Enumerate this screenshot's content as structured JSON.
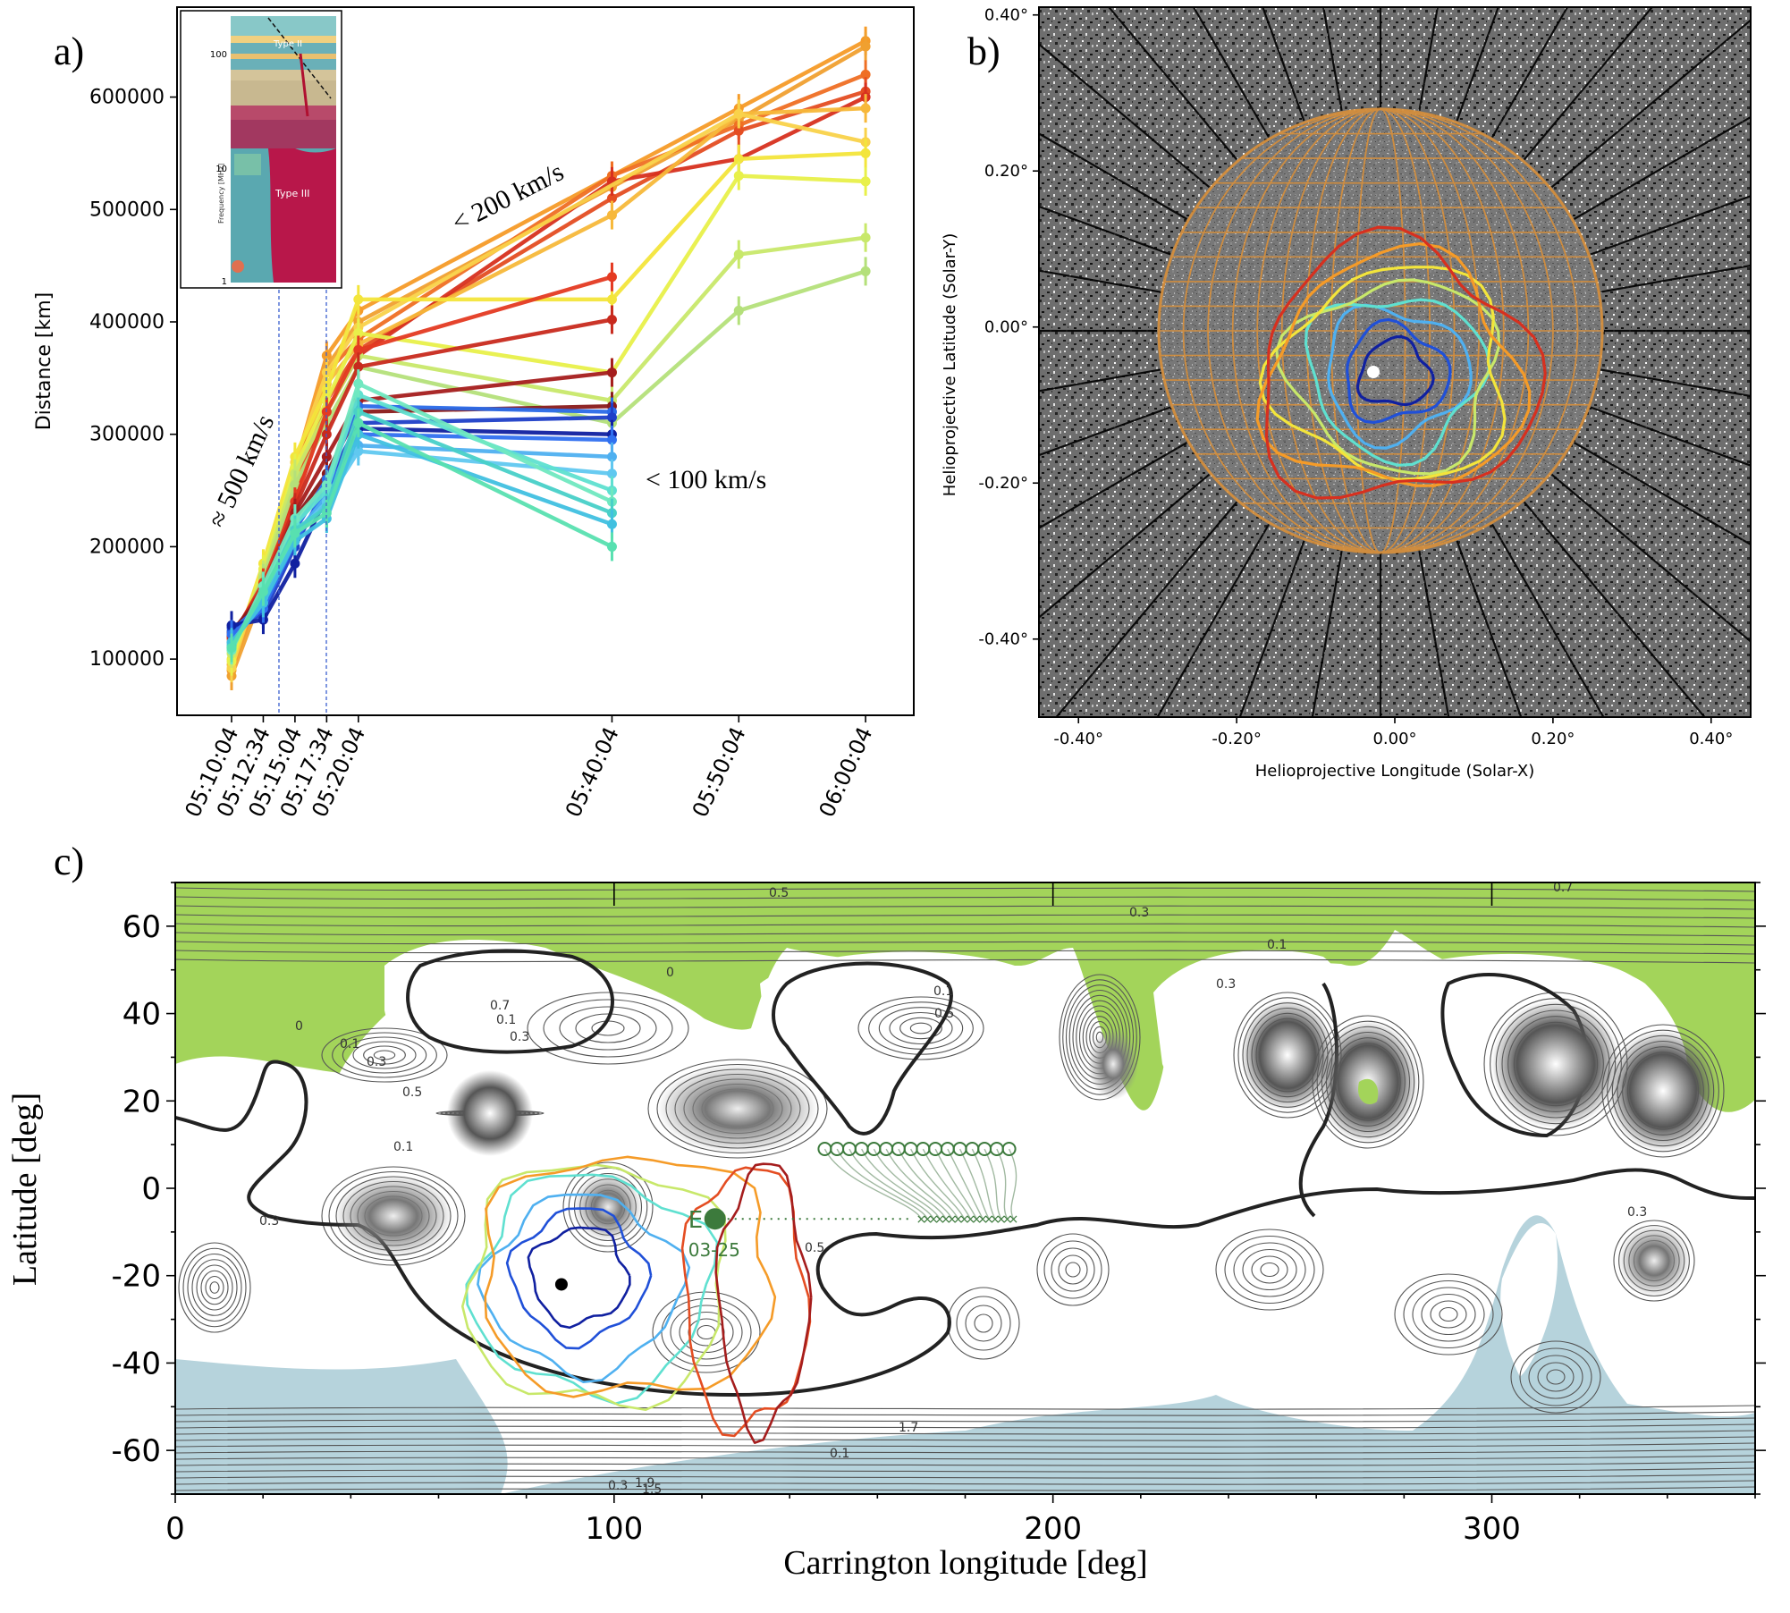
{
  "panel_a": {
    "label": "a)",
    "ylabel": "Distance [km]",
    "yticks": [
      "100000",
      "200000",
      "300000",
      "400000",
      "500000",
      "600000"
    ],
    "xticks": [
      "05:10:04",
      "05:12:34",
      "05:15:04",
      "05:17:34",
      "05:20:04",
      "05:40:04",
      "05:50:04",
      "06:00:04"
    ],
    "annotations": [
      "≈ 500 km/s",
      "< 200 km/s",
      "< 100 km/s"
    ],
    "inset": {
      "labels": [
        "Type II",
        "Type III",
        "Frequency [MHz]"
      ],
      "yticks": [
        "100",
        "10",
        "1"
      ]
    }
  },
  "panel_b": {
    "label": "b)",
    "xlabel": "Helioprojective Longitude (Solar-X)",
    "ylabel": "Helioprojective Latitude (Solar-Y)",
    "xticks": [
      "-0.40°",
      "-0.20°",
      "0.00°",
      "0.20°",
      "0.40°"
    ],
    "yticks": [
      "0.40°",
      "0.20°",
      "0.00°",
      "-0.20°",
      "-0.40°"
    ]
  },
  "panel_c": {
    "label": "c)",
    "xlabel": "Carrington longitude [deg]",
    "ylabel": "Latitude [deg]",
    "xticks": [
      "0",
      "100",
      "200",
      "300"
    ],
    "yticks": [
      "60",
      "40",
      "20",
      "0",
      "-20",
      "-40",
      "-60"
    ],
    "annotations": [
      "E",
      "03-25"
    ],
    "contour_labels": [
      "0.5",
      "0.3",
      "0.1",
      "0.7",
      "0",
      "0.1",
      "0.3",
      "0.5",
      "0.7",
      "0",
      "0.1",
      "0.3",
      "0.5",
      "0.1",
      "0.3",
      "0.1",
      "0.3",
      "0.5",
      "1.7",
      "1.5",
      "1.9",
      "0.3",
      "0.1",
      "0.3"
    ]
  },
  "colors": {
    "fast_orange": "#f59b28",
    "fast_red": "#d7301f",
    "dark_red": "#a51d1d",
    "yellow": "#f3e53b",
    "lime": "#c8e86a",
    "cyan": "#5fe0d0",
    "light_blue": "#4fb0f0",
    "blue": "#2050d8",
    "dark_blue": "#1020a0",
    "open_field_green": "#a3d45a",
    "open_field_blue": "#b6d3dc",
    "marker_green": "#3c7a3c",
    "grid_orange": "#d9903a"
  },
  "chart_data": [
    {
      "type": "line",
      "title": "",
      "xlabel": "",
      "ylabel": "Distance [km]",
      "x": [
        "05:10:04",
        "05:12:34",
        "05:15:04",
        "05:17:34",
        "05:20:04",
        "05:40:04",
        "05:50:04",
        "06:00:04"
      ],
      "x_minutes": [
        0,
        2.5,
        5,
        7.5,
        10,
        30,
        40,
        50
      ],
      "ylim": [
        50000,
        680000
      ],
      "inset": "radio dynamic spectrum with Type II and Type III bursts",
      "series": [
        {
          "color": "#f59b28",
          "values": [
            90000,
            170000,
            270000,
            370000,
            410000,
            530000,
            590000,
            650000
          ]
        },
        {
          "color": "#f0a030",
          "values": [
            85000,
            160000,
            255000,
            360000,
            400000,
            520000,
            580000,
            645000
          ]
        },
        {
          "color": "#ef6f24",
          "values": [
            110000,
            175000,
            265000,
            355000,
            385000,
            530000,
            575000,
            620000
          ]
        },
        {
          "color": "#e44d22",
          "values": [
            115000,
            170000,
            250000,
            330000,
            375000,
            510000,
            570000,
            605000
          ]
        },
        {
          "color": "#d7301f",
          "values": [
            120000,
            165000,
            245000,
            320000,
            370000,
            525000,
            545000,
            600000
          ]
        },
        {
          "color": "#f7b83a",
          "values": [
            95000,
            175000,
            260000,
            345000,
            380000,
            495000,
            585000,
            590000
          ]
        },
        {
          "color": "#f9d24a",
          "values": [
            92000,
            180000,
            275000,
            355000,
            395000,
            null,
            585000,
            560000
          ]
        },
        {
          "color": "#f3e53b",
          "values": [
            100000,
            185000,
            280000,
            340000,
            420000,
            420000,
            545000,
            550000
          ]
        },
        {
          "color": "#e8f04a",
          "values": [
            98000,
            180000,
            270000,
            330000,
            390000,
            355000,
            530000,
            525000
          ]
        },
        {
          "color": "#c8e86a",
          "values": [
            105000,
            175000,
            265000,
            320000,
            370000,
            330000,
            460000,
            475000
          ]
        },
        {
          "color": "#b4e07a",
          "values": [
            108000,
            172000,
            255000,
            310000,
            360000,
            310000,
            410000,
            445000
          ]
        },
        {
          "color": "#e43a22",
          "values": [
            118000,
            168000,
            240000,
            320000,
            375000,
            440000,
            null,
            null
          ]
        },
        {
          "color": "#c82a1e",
          "values": [
            120000,
            165000,
            235000,
            300000,
            360000,
            402000,
            null,
            null
          ]
        },
        {
          "color": "#a51d1d",
          "values": [
            122000,
            160000,
            230000,
            280000,
            330000,
            355000,
            null,
            null
          ]
        },
        {
          "color": "#8a1a1a",
          "values": [
            124000,
            158000,
            225000,
            265000,
            320000,
            325000,
            null,
            null
          ]
        },
        {
          "color": "#2a6ae8",
          "values": [
            125000,
            150000,
            215000,
            260000,
            325000,
            320000,
            null,
            null
          ]
        },
        {
          "color": "#1f3fc8",
          "values": [
            128000,
            140000,
            200000,
            255000,
            310000,
            315000,
            null,
            null
          ]
        },
        {
          "color": "#1020a0",
          "values": [
            130000,
            135000,
            185000,
            245000,
            305000,
            300000,
            null,
            null
          ]
        },
        {
          "color": "#3070f0",
          "values": [
            122000,
            145000,
            205000,
            250000,
            300000,
            295000,
            null,
            null
          ]
        },
        {
          "color": "#4fb0f0",
          "values": [
            115000,
            150000,
            210000,
            245000,
            290000,
            280000,
            null,
            null
          ]
        },
        {
          "color": "#60c8f0",
          "values": [
            112000,
            155000,
            210000,
            240000,
            285000,
            265000,
            null,
            null
          ]
        },
        {
          "color": "#5fe0d0",
          "values": [
            110000,
            160000,
            220000,
            250000,
            335000,
            250000,
            null,
            null
          ]
        },
        {
          "color": "#70e8c0",
          "values": [
            108000,
            165000,
            225000,
            255000,
            345000,
            240000,
            null,
            null
          ]
        },
        {
          "color": "#48d0c8",
          "values": [
            112000,
            158000,
            215000,
            235000,
            320000,
            230000,
            null,
            null
          ]
        },
        {
          "color": "#40c0e0",
          "values": [
            115000,
            150000,
            205000,
            225000,
            300000,
            220000,
            null,
            null
          ]
        },
        {
          "color": "#58e0b0",
          "values": [
            110000,
            160000,
            212000,
            230000,
            310000,
            200000,
            null,
            null
          ]
        }
      ]
    },
    {
      "type": "scatter",
      "title": "",
      "xlabel": "Helioprojective Longitude (Solar-X)",
      "ylabel": "Helioprojective Latitude (Solar-Y)",
      "xlim": [
        -0.45,
        0.45
      ],
      "ylim": [
        -0.5,
        0.41
      ],
      "center": [
        0.0,
        -0.06
      ],
      "grid_circle_radius": 0.28,
      "rings": [
        {
          "color": "#1020a0",
          "radius": 0.045
        },
        {
          "color": "#2050d8",
          "radius": 0.065
        },
        {
          "color": "#4fb0f0",
          "radius": 0.09
        },
        {
          "color": "#5fe0d0",
          "radius": 0.11
        },
        {
          "color": "#c8e86a",
          "radius": 0.13
        },
        {
          "color": "#f3e53b",
          "radius": 0.145
        },
        {
          "color": "#f59b28",
          "radius": 0.16
        },
        {
          "color": "#d7301f",
          "radius": 0.175
        }
      ]
    },
    {
      "type": "heatmap",
      "title": "",
      "xlabel": "Carrington longitude [deg]",
      "ylabel": "Latitude [deg]",
      "xlim": [
        0,
        360
      ],
      "ylim": [
        -70,
        70
      ],
      "markers": [
        {
          "label": "E",
          "lon": 123,
          "lat": -7,
          "date": "03-25"
        },
        {
          "label": "",
          "lon": 88,
          "lat": -22
        }
      ],
      "front_contours": [
        {
          "color": "#1020a0",
          "lon": 92,
          "lat": -20,
          "rlon": 11,
          "rlat": 11
        },
        {
          "color": "#2050d8",
          "lon": 92,
          "lat": -20,
          "rlon": 15,
          "rlat": 15
        },
        {
          "color": "#4fb0f0",
          "lon": 93,
          "lat": -22,
          "rlon": 22,
          "rlat": 20
        },
        {
          "color": "#5fe0d0",
          "lon": 95,
          "lat": -22,
          "rlon": 27,
          "rlat": 25
        },
        {
          "color": "#c8e86a",
          "lon": 96,
          "lat": -22,
          "rlon": 30,
          "rlat": 28
        },
        {
          "color": "#f59b28",
          "lon": 103,
          "lat": -20,
          "rlon": 34,
          "rlat": 28
        },
        {
          "color": "#e44d22",
          "lon": 130,
          "lat": -25,
          "rlon": 14,
          "rlat": 30
        },
        {
          "color": "#a51d1d",
          "lon": 134,
          "lat": -25,
          "rlon": 10,
          "rlat": 30
        }
      ]
    }
  ]
}
